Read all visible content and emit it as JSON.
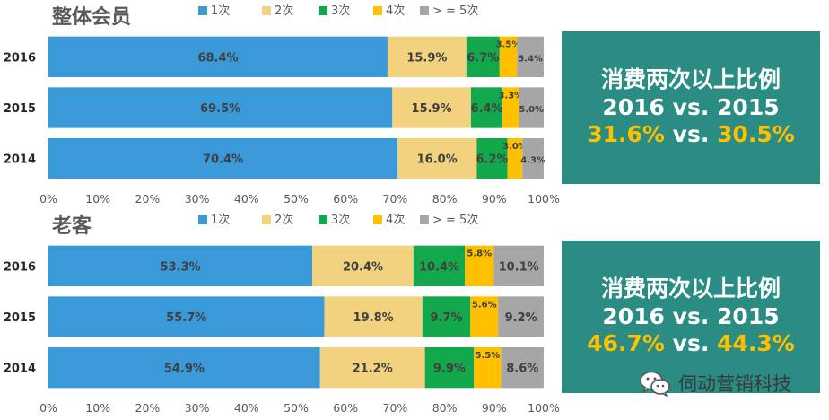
{
  "series_colors": [
    "#3a9ad9",
    "#f2d27f",
    "#13a84c",
    "#ffc000",
    "#a6a6a6"
  ],
  "chart_data": [
    {
      "type": "bar",
      "orientation": "horizontal",
      "stacked": "percent",
      "title": "整体会员",
      "legend": [
        "1次",
        "2次",
        "3次",
        "4次",
        "> = 5次"
      ],
      "legend_position": "top",
      "categories": [
        "2016",
        "2015",
        "2014"
      ],
      "series": [
        {
          "name": "1次",
          "values": [
            68.4,
            69.5,
            70.4
          ]
        },
        {
          "name": "2次",
          "values": [
            15.9,
            15.9,
            16.0
          ]
        },
        {
          "name": "3次",
          "values": [
            6.7,
            6.4,
            6.2
          ]
        },
        {
          "name": "4次",
          "values": [
            3.5,
            3.3,
            3.0
          ]
        },
        {
          "name": "> = 5次",
          "values": [
            5.4,
            5.0,
            4.3
          ]
        }
      ],
      "x_ticks": [
        "0%",
        "10%",
        "20%",
        "30%",
        "40%",
        "50%",
        "60%",
        "70%",
        "80%",
        "90%",
        "100%"
      ],
      "xlim": [
        0,
        100
      ]
    },
    {
      "type": "bar",
      "orientation": "horizontal",
      "stacked": "percent",
      "title": "老客",
      "legend": [
        "1次",
        "2次",
        "3次",
        "4次",
        "> = 5次"
      ],
      "legend_position": "top",
      "categories": [
        "2016",
        "2015",
        "2014"
      ],
      "series": [
        {
          "name": "1次",
          "values": [
            53.3,
            55.7,
            54.9
          ]
        },
        {
          "name": "2次",
          "values": [
            20.4,
            19.8,
            21.2
          ]
        },
        {
          "name": "3次",
          "values": [
            10.4,
            9.7,
            9.9
          ]
        },
        {
          "name": "4次",
          "values": [
            5.8,
            5.6,
            5.5
          ]
        },
        {
          "name": "> = 5次",
          "values": [
            10.1,
            9.2,
            8.6
          ]
        }
      ],
      "x_ticks": [
        "0%",
        "10%",
        "20%",
        "30%",
        "40%",
        "50%",
        "60%",
        "70%",
        "80%",
        "90%",
        "100%"
      ],
      "xlim": [
        0,
        100
      ]
    }
  ],
  "panels": [
    {
      "line1": "消费两次以上比例",
      "line2": "2016 vs. 2015",
      "value_2016": "31.6%",
      "vs": "vs.",
      "value_2015": "30.5%"
    },
    {
      "line1": "消费两次以上比例",
      "line2": "2016 vs. 2015",
      "value_2016": "46.7%",
      "vs": "vs.",
      "value_2015": "44.3%"
    }
  ],
  "watermark": {
    "icon": "wechat-icon",
    "text": "伺动营销科技"
  }
}
